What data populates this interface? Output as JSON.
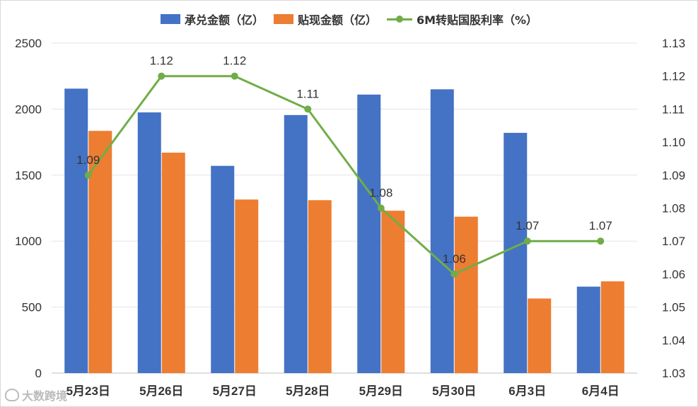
{
  "legend": {
    "acceptance_label": "承兑金额（亿）",
    "discount_label": "贴现金额（亿）",
    "rate_label": "6M转贴国股利率（%）"
  },
  "colors": {
    "acceptance": "#4472C4",
    "discount": "#ED7D31",
    "rate": "#70AD47",
    "grid": "#e3e3e3",
    "axis_text": "#333333"
  },
  "watermark": {
    "text": "大数跨境"
  },
  "chart_data": {
    "type": "bar",
    "categories": [
      "5月23日",
      "5月26日",
      "5月27日",
      "5月28日",
      "5月29日",
      "5月30日",
      "6月3日",
      "6月4日"
    ],
    "series": [
      {
        "name": "承兑金额（亿）",
        "type": "bar",
        "axis": "left",
        "values": [
          2155,
          1975,
          1570,
          1955,
          2110,
          2150,
          1820,
          655
        ]
      },
      {
        "name": "贴现金额（亿）",
        "type": "bar",
        "axis": "left",
        "values": [
          1835,
          1670,
          1315,
          1310,
          1230,
          1185,
          565,
          695
        ]
      },
      {
        "name": "6M转贴国股利率（%）",
        "type": "line",
        "axis": "right",
        "values": [
          1.09,
          1.12,
          1.12,
          1.11,
          1.08,
          1.06,
          1.07,
          1.07
        ],
        "labels": [
          "1.09",
          "1.12",
          "1.12",
          "1.11",
          "1.08",
          "1.06",
          "1.07",
          "1.07"
        ]
      }
    ],
    "y_left": {
      "lim": [
        0,
        2500
      ],
      "ticks": [
        "0",
        "500",
        "1000",
        "1500",
        "2000",
        "2500"
      ]
    },
    "y_right": {
      "lim": [
        1.03,
        1.13
      ],
      "ticks": [
        "1.03",
        "1.04",
        "1.05",
        "1.06",
        "1.07",
        "1.08",
        "1.09",
        "1.10",
        "1.11",
        "1.12",
        "1.13"
      ]
    },
    "grid": true,
    "legend_position": "top"
  }
}
